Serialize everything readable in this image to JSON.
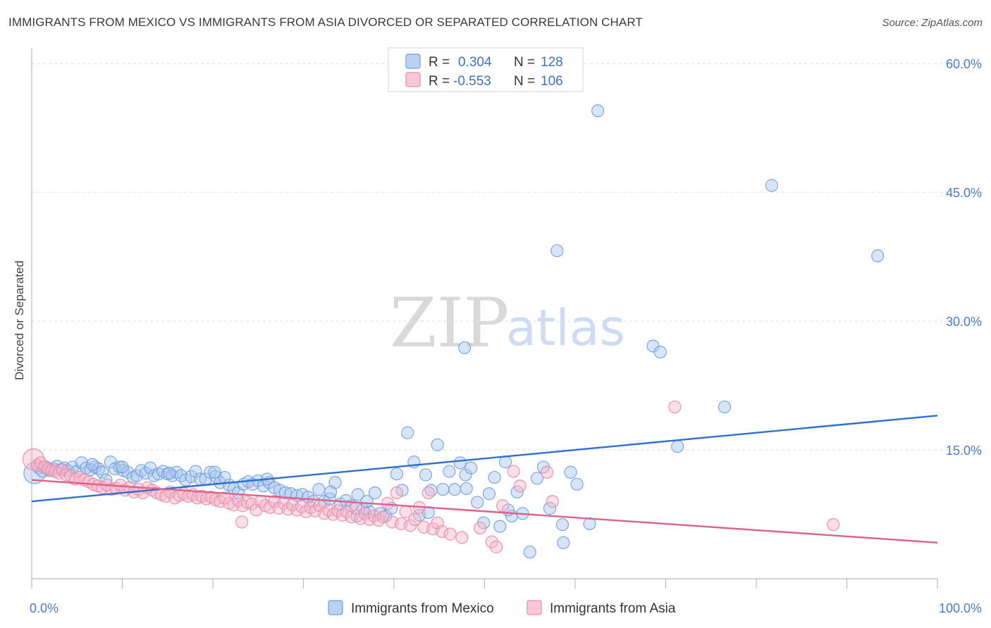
{
  "title": "IMMIGRANTS FROM MEXICO VS IMMIGRANTS FROM ASIA DIVORCED OR SEPARATED CORRELATION CHART",
  "source": "Source: ZipAtlas.com",
  "watermark": {
    "zip": "ZIP",
    "atlas": "atlas"
  },
  "legend": {
    "r_label": "R =",
    "n_label": "N =",
    "entries": [
      {
        "r": "0.304",
        "n": "128"
      },
      {
        "r": "-0.553",
        "n": "106"
      }
    ]
  },
  "colors": {
    "mexico_fill": "#a9c6f0",
    "mexico_stroke": "#6f9ee0",
    "mexico_line": "#2f6fd0",
    "asia_fill": "#f7b6c8",
    "asia_stroke": "#e98aa8",
    "asia_line": "#e0608a",
    "tick": "#4a7bd0",
    "grid": "#dddddd"
  },
  "chart_data": {
    "type": "scatter",
    "title": "IMMIGRANTS FROM MEXICO VS IMMIGRANTS FROM ASIA DIVORCED OR SEPARATED CORRELATION CHART",
    "xlabel": "",
    "ylabel": "Divorced or Separated",
    "xlim": [
      0,
      100
    ],
    "ylim": [
      0,
      61
    ],
    "x_tick_labels": [
      "0.0%",
      "100.0%"
    ],
    "y_ticks": [
      15,
      30,
      45,
      60
    ],
    "y_tick_labels": [
      "15.0%",
      "30.0%",
      "45.0%",
      "60.0%"
    ],
    "grid": true,
    "legend_placement": "top-center",
    "series": [
      {
        "name": "Immigrants from Mexico",
        "r": 0.304,
        "n": 128,
        "trend": {
          "x": [
            0,
            100
          ],
          "y": [
            9.0,
            19.0
          ]
        },
        "points": [
          [
            0.3,
            12.3
          ],
          [
            0.8,
            12.9
          ],
          [
            1.2,
            12.5
          ],
          [
            1.6,
            13.0
          ],
          [
            2.0,
            12.6
          ],
          [
            2.4,
            12.8
          ],
          [
            2.8,
            13.1
          ],
          [
            3.2,
            12.7
          ],
          [
            3.6,
            12.9
          ],
          [
            4.0,
            12.6
          ],
          [
            4.5,
            13.0
          ],
          [
            5.0,
            12.5
          ],
          [
            5.5,
            13.5
          ],
          [
            6.0,
            12.9
          ],
          [
            6.5,
            12.7
          ],
          [
            7.0,
            13.0
          ],
          [
            7.4,
            12.8
          ],
          [
            7.8,
            12.4
          ],
          [
            8.2,
            11.5
          ],
          [
            8.7,
            13.6
          ],
          [
            9.2,
            12.8
          ],
          [
            9.7,
            13.0
          ],
          [
            10.1,
            12.6
          ],
          [
            10.6,
            12.4
          ],
          [
            11.2,
            11.8
          ],
          [
            11.6,
            12.0
          ],
          [
            12.1,
            12.6
          ],
          [
            12.6,
            12.3
          ],
          [
            13.1,
            12.9
          ],
          [
            13.5,
            12.0
          ],
          [
            14.0,
            12.2
          ],
          [
            14.5,
            12.5
          ],
          [
            15.0,
            12.2
          ],
          [
            15.5,
            12.0
          ],
          [
            16.0,
            12.4
          ],
          [
            16.5,
            12.0
          ],
          [
            17.0,
            11.5
          ],
          [
            17.6,
            11.9
          ],
          [
            18.1,
            12.5
          ],
          [
            18.6,
            11.6
          ],
          [
            19.2,
            11.6
          ],
          [
            19.7,
            12.4
          ],
          [
            20.3,
            11.9
          ],
          [
            20.8,
            11.2
          ],
          [
            21.3,
            11.8
          ],
          [
            21.8,
            10.9
          ],
          [
            22.3,
            10.5
          ],
          [
            22.8,
            10.0
          ],
          [
            23.4,
            11.0
          ],
          [
            23.9,
            11.3
          ],
          [
            24.4,
            11.0
          ],
          [
            25.0,
            11.4
          ],
          [
            25.6,
            10.8
          ],
          [
            26.2,
            11.2
          ],
          [
            26.8,
            10.6
          ],
          [
            27.4,
            10.3
          ],
          [
            28.0,
            10.0
          ],
          [
            28.6,
            9.9
          ],
          [
            29.3,
            9.7
          ],
          [
            29.9,
            9.8
          ],
          [
            30.5,
            9.5
          ],
          [
            31.1,
            9.0
          ],
          [
            31.7,
            10.4
          ],
          [
            32.3,
            9.0
          ],
          [
            32.9,
            9.3
          ],
          [
            33.5,
            11.2
          ],
          [
            34.1,
            8.7
          ],
          [
            34.7,
            9.1
          ],
          [
            35.3,
            8.5
          ],
          [
            36.0,
            9.8
          ],
          [
            36.6,
            8.1
          ],
          [
            37.3,
            7.8
          ],
          [
            37.9,
            10.0
          ],
          [
            38.5,
            7.6
          ],
          [
            39.1,
            7.3
          ],
          [
            39.7,
            8.2
          ],
          [
            40.3,
            12.2
          ],
          [
            40.9,
            10.3
          ],
          [
            41.5,
            17.0
          ],
          [
            42.2,
            13.6
          ],
          [
            42.8,
            7.4
          ],
          [
            43.5,
            12.1
          ],
          [
            44.1,
            10.3
          ],
          [
            44.8,
            15.6
          ],
          [
            45.4,
            10.4
          ],
          [
            46.1,
            12.5
          ],
          [
            46.7,
            10.4
          ],
          [
            47.3,
            13.5
          ],
          [
            47.9,
            12.1
          ],
          [
            48.5,
            12.9
          ],
          [
            49.2,
            8.9
          ],
          [
            49.9,
            6.5
          ],
          [
            50.5,
            9.9
          ],
          [
            51.1,
            11.8
          ],
          [
            51.7,
            6.1
          ],
          [
            52.3,
            13.6
          ],
          [
            53.0,
            7.3
          ],
          [
            53.6,
            10.1
          ],
          [
            54.2,
            7.6
          ],
          [
            55.0,
            3.1
          ],
          [
            55.8,
            11.7
          ],
          [
            56.5,
            13.0
          ],
          [
            57.2,
            8.2
          ],
          [
            58.0,
            38.2
          ],
          [
            58.7,
            4.2
          ],
          [
            59.5,
            12.4
          ],
          [
            60.2,
            11.0
          ],
          [
            61.6,
            6.4
          ],
          [
            62.5,
            54.5
          ],
          [
            68.6,
            27.1
          ],
          [
            69.4,
            26.4
          ],
          [
            71.3,
            15.4
          ],
          [
            76.5,
            20.0
          ],
          [
            81.7,
            45.8
          ],
          [
            93.4,
            37.6
          ],
          [
            47.8,
            26.9
          ],
          [
            58.6,
            6.3
          ],
          [
            35.9,
            7.3
          ],
          [
            48.0,
            10.5
          ],
          [
            52.6,
            8.0
          ],
          [
            26.0,
            11.6
          ],
          [
            20.2,
            12.4
          ],
          [
            15.2,
            12.3
          ],
          [
            10.0,
            13.0
          ],
          [
            6.7,
            13.3
          ],
          [
            43.8,
            7.7
          ],
          [
            37.0,
            9.0
          ],
          [
            33.0,
            10.1
          ]
        ]
      },
      {
        "name": "Immigrants from Asia",
        "r": -0.553,
        "n": 106,
        "trend": {
          "x": [
            0,
            100
          ],
          "y": [
            11.5,
            4.2
          ]
        },
        "points": [
          [
            0.2,
            13.9
          ],
          [
            0.6,
            13.2
          ],
          [
            1.0,
            13.5
          ],
          [
            1.4,
            13.0
          ],
          [
            1.8,
            12.8
          ],
          [
            2.2,
            12.6
          ],
          [
            2.6,
            12.5
          ],
          [
            3.0,
            12.3
          ],
          [
            3.4,
            12.7
          ],
          [
            3.8,
            12.1
          ],
          [
            4.3,
            12.0
          ],
          [
            4.8,
            11.6
          ],
          [
            5.3,
            11.8
          ],
          [
            5.8,
            11.5
          ],
          [
            6.3,
            11.3
          ],
          [
            6.8,
            11.0
          ],
          [
            7.3,
            10.8
          ],
          [
            7.8,
            10.6
          ],
          [
            8.3,
            10.9
          ],
          [
            8.8,
            10.4
          ],
          [
            9.3,
            10.5
          ],
          [
            9.8,
            10.9
          ],
          [
            10.3,
            10.3
          ],
          [
            10.8,
            10.6
          ],
          [
            11.3,
            10.1
          ],
          [
            11.8,
            10.4
          ],
          [
            12.3,
            10.0
          ],
          [
            12.8,
            10.6
          ],
          [
            13.3,
            10.3
          ],
          [
            13.8,
            10.0
          ],
          [
            14.3,
            9.8
          ],
          [
            14.8,
            9.6
          ],
          [
            15.3,
            10.1
          ],
          [
            15.8,
            9.4
          ],
          [
            16.3,
            9.7
          ],
          [
            16.8,
            9.9
          ],
          [
            17.3,
            9.6
          ],
          [
            17.8,
            9.8
          ],
          [
            18.3,
            9.4
          ],
          [
            18.8,
            9.6
          ],
          [
            19.3,
            9.3
          ],
          [
            19.8,
            9.5
          ],
          [
            20.3,
            9.2
          ],
          [
            20.8,
            9.0
          ],
          [
            21.3,
            9.4
          ],
          [
            21.8,
            8.8
          ],
          [
            22.3,
            8.6
          ],
          [
            22.8,
            9.1
          ],
          [
            23.3,
            8.5
          ],
          [
            23.8,
            8.9
          ],
          [
            24.3,
            8.7
          ],
          [
            24.8,
            8.0
          ],
          [
            25.3,
            9.0
          ],
          [
            25.8,
            8.5
          ],
          [
            26.3,
            8.3
          ],
          [
            26.8,
            9.0
          ],
          [
            27.3,
            8.2
          ],
          [
            27.8,
            8.8
          ],
          [
            28.3,
            8.1
          ],
          [
            28.8,
            8.6
          ],
          [
            29.3,
            8.0
          ],
          [
            29.8,
            8.4
          ],
          [
            30.3,
            7.8
          ],
          [
            30.8,
            8.3
          ],
          [
            31.3,
            7.9
          ],
          [
            31.8,
            8.5
          ],
          [
            32.3,
            7.6
          ],
          [
            32.8,
            8.0
          ],
          [
            33.3,
            7.5
          ],
          [
            33.8,
            7.9
          ],
          [
            34.3,
            7.4
          ],
          [
            34.8,
            7.8
          ],
          [
            35.3,
            7.2
          ],
          [
            35.8,
            8.2
          ],
          [
            36.3,
            7.0
          ],
          [
            36.8,
            7.6
          ],
          [
            37.3,
            6.9
          ],
          [
            37.8,
            7.3
          ],
          [
            38.3,
            6.8
          ],
          [
            38.8,
            7.2
          ],
          [
            39.3,
            8.8
          ],
          [
            39.8,
            6.6
          ],
          [
            40.3,
            10.0
          ],
          [
            40.8,
            6.4
          ],
          [
            41.3,
            7.8
          ],
          [
            41.8,
            6.2
          ],
          [
            42.3,
            6.9
          ],
          [
            42.8,
            8.3
          ],
          [
            43.3,
            6.0
          ],
          [
            43.8,
            10.0
          ],
          [
            44.3,
            5.8
          ],
          [
            44.8,
            6.5
          ],
          [
            45.3,
            5.5
          ],
          [
            46.2,
            5.2
          ],
          [
            47.5,
            4.8
          ],
          [
            49.5,
            5.9
          ],
          [
            50.8,
            4.3
          ],
          [
            51.3,
            3.7
          ],
          [
            52.0,
            8.5
          ],
          [
            53.2,
            12.5
          ],
          [
            53.9,
            10.8
          ],
          [
            56.9,
            12.4
          ],
          [
            57.5,
            9.0
          ],
          [
            71.0,
            20.0
          ],
          [
            88.5,
            6.3
          ],
          [
            23.2,
            6.6
          ]
        ]
      }
    ]
  },
  "bottom_legend": [
    "Immigrants from Mexico",
    "Immigrants from Asia"
  ]
}
